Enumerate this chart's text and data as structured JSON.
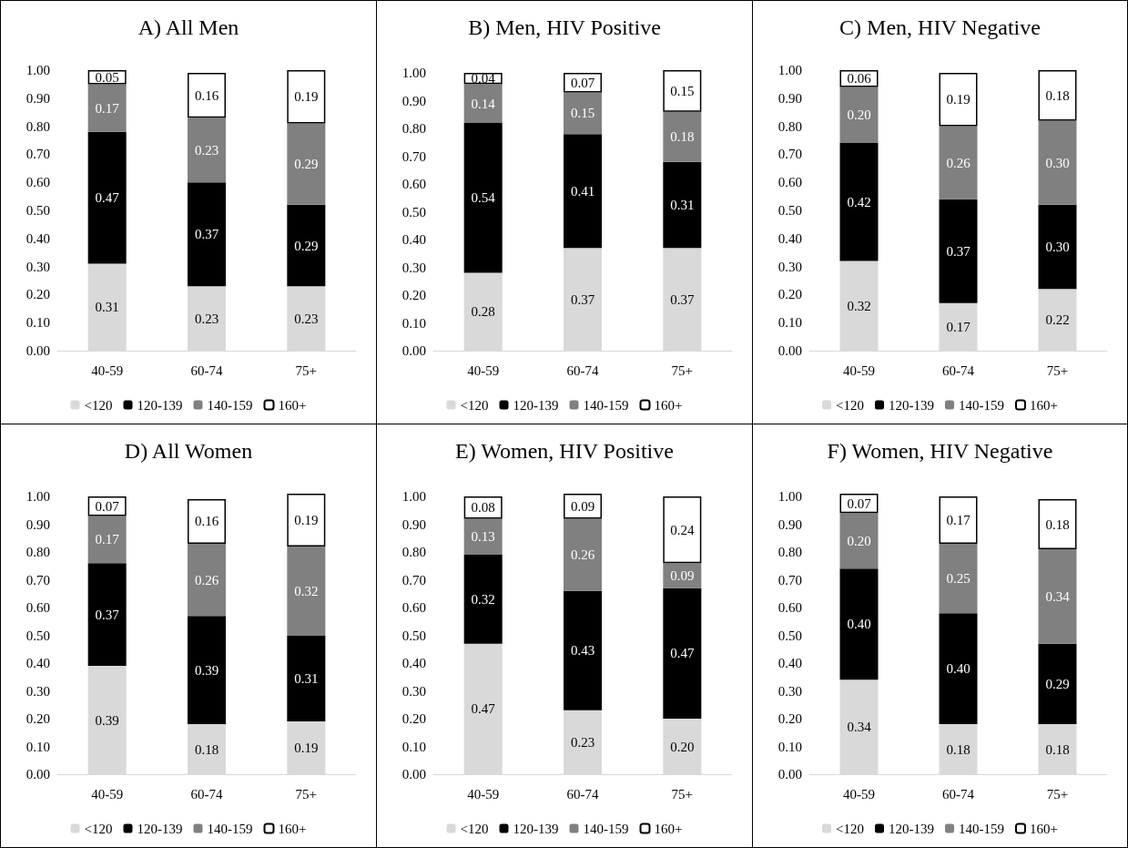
{
  "chart_data": [
    {
      "type": "bar",
      "title": "A) All Men",
      "categories": [
        "40-59",
        "60-74",
        "75+"
      ],
      "stacked": true,
      "legend": "bottom",
      "grid": false,
      "ylim": [
        0,
        1
      ],
      "yticks": [
        {
          "value": 0,
          "label": "0.00"
        },
        {
          "value": 0.1,
          "label": "0.10"
        },
        {
          "value": 0.2,
          "label": "0.20"
        },
        {
          "value": 0.3,
          "label": "0.30"
        },
        {
          "value": 0.4,
          "label": "0.40"
        },
        {
          "value": 0.5,
          "label": "0.50"
        },
        {
          "value": 0.6,
          "label": "0.60"
        },
        {
          "value": 0.7,
          "label": "0.70"
        },
        {
          "value": 0.8,
          "label": "0.80"
        },
        {
          "value": 0.9,
          "label": "0.90"
        },
        {
          "value": 1,
          "label": "1.00"
        }
      ],
      "series": [
        {
          "name": "<120",
          "color": "#d9d9d9",
          "values": [
            0.31,
            0.23,
            0.23
          ],
          "value_labels": [
            "0.31",
            "0.23",
            "0.23"
          ]
        },
        {
          "name": "120-139",
          "color": "#000000",
          "values": [
            0.47,
            0.37,
            0.29
          ],
          "value_labels": [
            "0.47",
            "0.37",
            "0.29"
          ]
        },
        {
          "name": "140-159",
          "color": "#808080",
          "values": [
            0.17,
            0.23,
            0.29
          ],
          "value_labels": [
            "0.17",
            "0.23",
            "0.29"
          ]
        },
        {
          "name": "160+",
          "color": "#ffffff",
          "values": [
            0.05,
            0.16,
            0.19
          ],
          "value_labels": [
            "0.05",
            "0.16",
            "0.19"
          ]
        }
      ]
    },
    {
      "type": "bar",
      "title": "B) Men, HIV Positive",
      "categories": [
        "40-59",
        "60-74",
        "75+"
      ],
      "stacked": true,
      "legend": "bottom",
      "grid": false,
      "ylim": [
        0,
        1.01
      ],
      "yticks": [
        {
          "value": 0,
          "label": "0.00"
        },
        {
          "value": 0.1,
          "label": "0.10"
        },
        {
          "value": 0.2,
          "label": "0.20"
        },
        {
          "value": 0.3,
          "label": "0.30"
        },
        {
          "value": 0.4,
          "label": "0.40"
        },
        {
          "value": 0.5,
          "label": "0.50"
        },
        {
          "value": 0.6,
          "label": "0.60"
        },
        {
          "value": 0.7,
          "label": "0.70"
        },
        {
          "value": 0.8,
          "label": "0.80"
        },
        {
          "value": 0.9,
          "label": "0.90"
        },
        {
          "value": 1,
          "label": "1.00"
        }
      ],
      "series": [
        {
          "name": "<120",
          "color": "#d9d9d9",
          "values": [
            0.28,
            0.37,
            0.37
          ],
          "value_labels": [
            "0.28",
            "0.37",
            "0.37"
          ]
        },
        {
          "name": "120-139",
          "color": "#000000",
          "values": [
            0.54,
            0.41,
            0.31
          ],
          "value_labels": [
            "0.54",
            "0.41",
            "0.31"
          ]
        },
        {
          "name": "140-159",
          "color": "#808080",
          "values": [
            0.14,
            0.15,
            0.18
          ],
          "value_labels": [
            "0.14",
            "0.15",
            "0.18"
          ]
        },
        {
          "name": "160+",
          "color": "#ffffff",
          "values": [
            0.04,
            0.07,
            0.15
          ],
          "value_labels": [
            "0.04",
            "0.07",
            "0.15"
          ]
        }
      ]
    },
    {
      "type": "bar",
      "title": "C) Men, HIV Negative",
      "categories": [
        "40-59",
        "60-74",
        "75+"
      ],
      "stacked": true,
      "legend": "bottom",
      "grid": false,
      "ylim": [
        0,
        1
      ],
      "yticks": [
        {
          "value": 0,
          "label": "0.00"
        },
        {
          "value": 0.1,
          "label": "0.10"
        },
        {
          "value": 0.2,
          "label": "0.20"
        },
        {
          "value": 0.3,
          "label": "0.30"
        },
        {
          "value": 0.4,
          "label": "0.40"
        },
        {
          "value": 0.5,
          "label": "0.50"
        },
        {
          "value": 0.6,
          "label": "0.60"
        },
        {
          "value": 0.7,
          "label": "0.70"
        },
        {
          "value": 0.8,
          "label": "0.80"
        },
        {
          "value": 0.9,
          "label": "0.90"
        },
        {
          "value": 1,
          "label": "1.00"
        }
      ],
      "series": [
        {
          "name": "<120",
          "color": "#d9d9d9",
          "values": [
            0.32,
            0.17,
            0.22
          ],
          "value_labels": [
            "0.32",
            "0.17",
            "0.22"
          ]
        },
        {
          "name": "120-139",
          "color": "#000000",
          "values": [
            0.42,
            0.37,
            0.3
          ],
          "value_labels": [
            "0.42",
            "0.37",
            "0.30"
          ]
        },
        {
          "name": "140-159",
          "color": "#808080",
          "values": [
            0.2,
            0.26,
            0.3
          ],
          "value_labels": [
            "0.20",
            "0.26",
            "0.30"
          ]
        },
        {
          "name": "160+",
          "color": "#ffffff",
          "values": [
            0.06,
            0.19,
            0.18
          ],
          "value_labels": [
            "0.06",
            "0.19",
            "0.18"
          ]
        }
      ]
    },
    {
      "type": "bar",
      "title": "D) All Women",
      "categories": [
        "40-59",
        "60-74",
        "75+"
      ],
      "stacked": true,
      "legend": "bottom",
      "grid": false,
      "ylim": [
        0,
        1.01
      ],
      "yticks": [
        {
          "value": 0,
          "label": "0.00"
        },
        {
          "value": 0.1,
          "label": "0.10"
        },
        {
          "value": 0.2,
          "label": "0.20"
        },
        {
          "value": 0.3,
          "label": "0.30"
        },
        {
          "value": 0.4,
          "label": "0.40"
        },
        {
          "value": 0.5,
          "label": "0.50"
        },
        {
          "value": 0.6,
          "label": "0.60"
        },
        {
          "value": 0.7,
          "label": "0.70"
        },
        {
          "value": 0.8,
          "label": "0.80"
        },
        {
          "value": 0.9,
          "label": "0.90"
        },
        {
          "value": 1,
          "label": "1.00"
        }
      ],
      "series": [
        {
          "name": "<120",
          "color": "#d9d9d9",
          "values": [
            0.39,
            0.18,
            0.19
          ],
          "value_labels": [
            "0.39",
            "0.18",
            "0.19"
          ]
        },
        {
          "name": "120-139",
          "color": "#000000",
          "values": [
            0.37,
            0.39,
            0.31
          ],
          "value_labels": [
            "0.37",
            "0.39",
            "0.31"
          ]
        },
        {
          "name": "140-159",
          "color": "#808080",
          "values": [
            0.17,
            0.26,
            0.32
          ],
          "value_labels": [
            "0.17",
            "0.26",
            "0.32"
          ]
        },
        {
          "name": "160+",
          "color": "#ffffff",
          "values": [
            0.07,
            0.16,
            0.19
          ],
          "value_labels": [
            "0.07",
            "0.16",
            "0.19"
          ]
        }
      ]
    },
    {
      "type": "bar",
      "title": "E) Women, HIV Positive",
      "categories": [
        "40-59",
        "60-74",
        "75+"
      ],
      "stacked": true,
      "legend": "bottom",
      "grid": false,
      "ylim": [
        0,
        1.01
      ],
      "yticks": [
        {
          "value": 0,
          "label": "0.00"
        },
        {
          "value": 0.1,
          "label": "0.10"
        },
        {
          "value": 0.2,
          "label": "0.20"
        },
        {
          "value": 0.3,
          "label": "0.30"
        },
        {
          "value": 0.4,
          "label": "0.40"
        },
        {
          "value": 0.5,
          "label": "0.50"
        },
        {
          "value": 0.6,
          "label": "0.60"
        },
        {
          "value": 0.7,
          "label": "0.70"
        },
        {
          "value": 0.8,
          "label": "0.80"
        },
        {
          "value": 0.9,
          "label": "0.90"
        },
        {
          "value": 1,
          "label": "1.00"
        }
      ],
      "series": [
        {
          "name": "<120",
          "color": "#d9d9d9",
          "values": [
            0.47,
            0.23,
            0.2
          ],
          "value_labels": [
            "0.47",
            "0.23",
            "0.20"
          ]
        },
        {
          "name": "120-139",
          "color": "#000000",
          "values": [
            0.32,
            0.43,
            0.47
          ],
          "value_labels": [
            "0.32",
            "0.43",
            "0.47"
          ]
        },
        {
          "name": "140-159",
          "color": "#808080",
          "values": [
            0.13,
            0.26,
            0.09
          ],
          "value_labels": [
            "0.13",
            "0.26",
            "0.09"
          ]
        },
        {
          "name": "160+",
          "color": "#ffffff",
          "values": [
            0.08,
            0.09,
            0.24
          ],
          "value_labels": [
            "0.08",
            "0.09",
            "0.24"
          ]
        }
      ]
    },
    {
      "type": "bar",
      "title": "F) Women, HIV Negative",
      "categories": [
        "40-59",
        "60-74",
        "75+"
      ],
      "stacked": true,
      "legend": "bottom",
      "grid": false,
      "ylim": [
        0,
        1.01
      ],
      "yticks": [
        {
          "value": 0,
          "label": "0.00"
        },
        {
          "value": 0.1,
          "label": "0.10"
        },
        {
          "value": 0.2,
          "label": "0.20"
        },
        {
          "value": 0.3,
          "label": "0.30"
        },
        {
          "value": 0.4,
          "label": "0.40"
        },
        {
          "value": 0.5,
          "label": "0.50"
        },
        {
          "value": 0.6,
          "label": "0.60"
        },
        {
          "value": 0.7,
          "label": "0.70"
        },
        {
          "value": 0.8,
          "label": "0.80"
        },
        {
          "value": 0.9,
          "label": "0.90"
        },
        {
          "value": 1,
          "label": "1.00"
        }
      ],
      "series": [
        {
          "name": "<120",
          "color": "#d9d9d9",
          "values": [
            0.34,
            0.18,
            0.18
          ],
          "value_labels": [
            "0.34",
            "0.18",
            "0.18"
          ]
        },
        {
          "name": "120-139",
          "color": "#000000",
          "values": [
            0.4,
            0.4,
            0.29
          ],
          "value_labels": [
            "0.40",
            "0.40",
            "0.29"
          ]
        },
        {
          "name": "140-159",
          "color": "#808080",
          "values": [
            0.2,
            0.25,
            0.34
          ],
          "value_labels": [
            "0.20",
            "0.25",
            "0.34"
          ]
        },
        {
          "name": "160+",
          "color": "#ffffff",
          "values": [
            0.07,
            0.17,
            0.18
          ],
          "value_labels": [
            "0.07",
            "0.17",
            "0.18"
          ]
        }
      ]
    }
  ]
}
